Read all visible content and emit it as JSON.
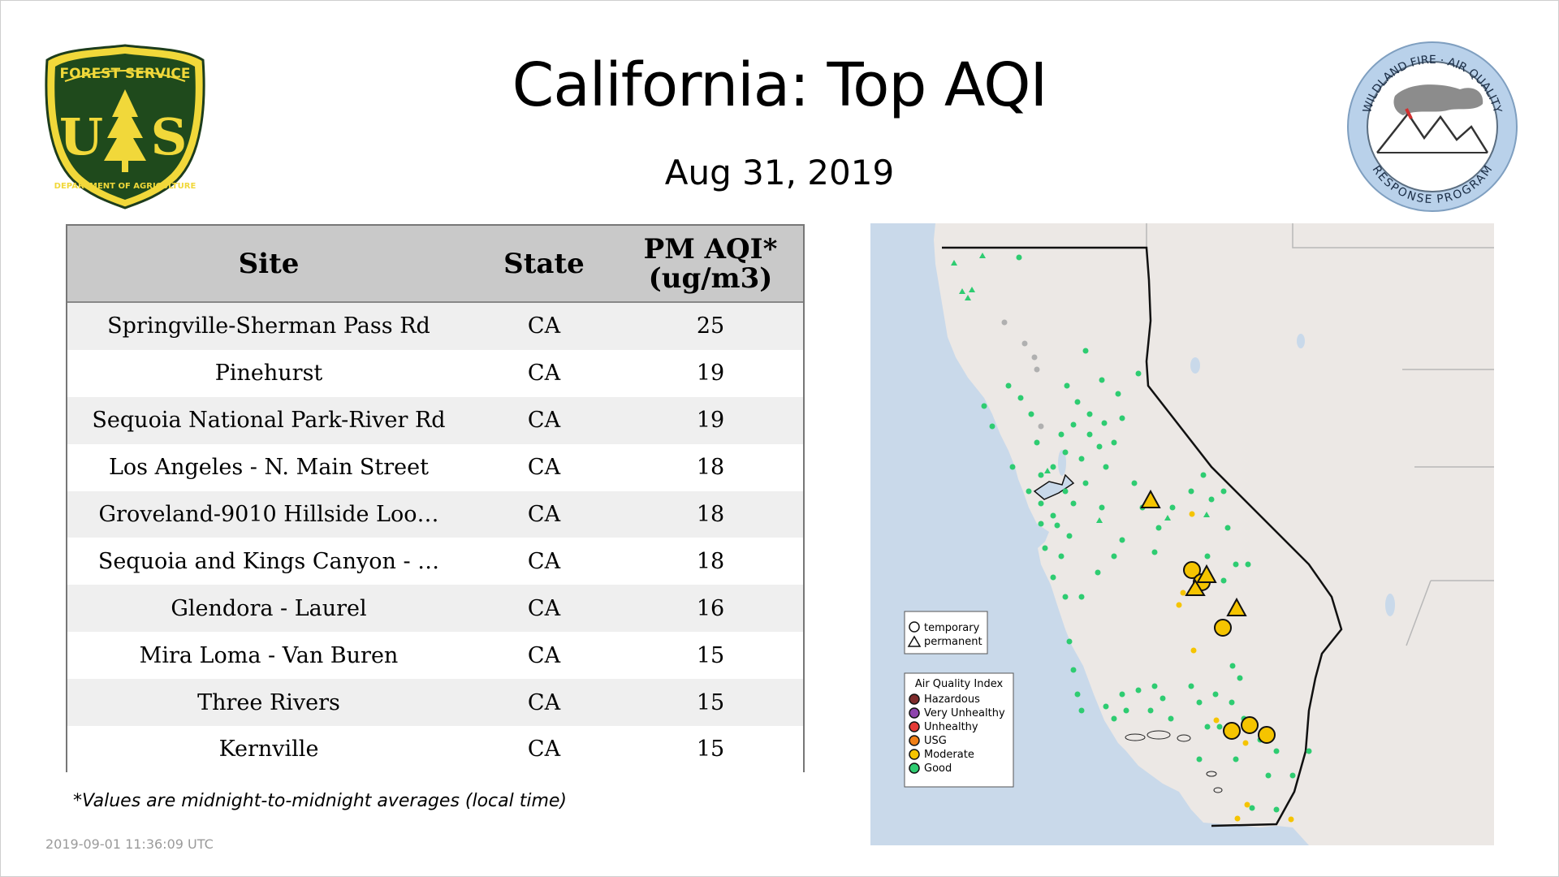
{
  "header": {
    "title": "California: Top AQI",
    "date": "Aug 31, 2019"
  },
  "logos": {
    "forest_service": {
      "top": "FOREST SERVICE",
      "letters": "U S",
      "bottom": "DEPARTMENT OF AGRICULTURE"
    },
    "wildland": {
      "top": "WILDLAND FIRE · AIR QUALITY",
      "bottom": "RESPONSE PROGRAM"
    }
  },
  "table": {
    "headers": {
      "site": "Site",
      "state": "State",
      "aqi_line1": "PM AQI*",
      "aqi_line2": "(ug/m3)"
    },
    "rows": [
      {
        "site": "Springville-Sherman Pass Rd",
        "state": "CA",
        "aqi": "25"
      },
      {
        "site": "Pinehurst",
        "state": "CA",
        "aqi": "19"
      },
      {
        "site": "Sequoia National Park-River Rd",
        "state": "CA",
        "aqi": "19"
      },
      {
        "site": "Los Angeles - N. Main Street",
        "state": "CA",
        "aqi": "18"
      },
      {
        "site": "Groveland-9010 Hillside Loo…",
        "state": "CA",
        "aqi": "18"
      },
      {
        "site": "Sequoia and Kings Canyon - …",
        "state": "CA",
        "aqi": "18"
      },
      {
        "site": "Glendora - Laurel",
        "state": "CA",
        "aqi": "16"
      },
      {
        "site": "Mira Loma - Van Buren",
        "state": "CA",
        "aqi": "15"
      },
      {
        "site": "Three Rivers",
        "state": "CA",
        "aqi": "15"
      },
      {
        "site": "Kernville",
        "state": "CA",
        "aqi": "15"
      }
    ]
  },
  "footnote": "*Values are midnight-to-midnight averages (local time)",
  "timestamp": "2019-09-01 11:36:09 UTC",
  "map": {
    "monitor_legend": {
      "temporary": "temporary",
      "permanent": "permanent"
    },
    "aqi_legend": {
      "title": "Air Quality Index",
      "items": [
        {
          "label": "Hazardous",
          "color": "#7e2b2b"
        },
        {
          "label": "Very Unhealthy",
          "color": "#8e44ad"
        },
        {
          "label": "Unhealthy",
          "color": "#e53935"
        },
        {
          "label": "USG",
          "color": "#f07f16"
        },
        {
          "label": "Moderate",
          "color": "#f5c400"
        },
        {
          "label": "Good",
          "color": "#2ecc71"
        }
      ]
    },
    "colors": {
      "ocean": "#c9d9ea",
      "land": "#ede9e6",
      "good": "#2ecc71",
      "moderate": "#f5c400",
      "no_data": "#b0b0b0"
    }
  }
}
